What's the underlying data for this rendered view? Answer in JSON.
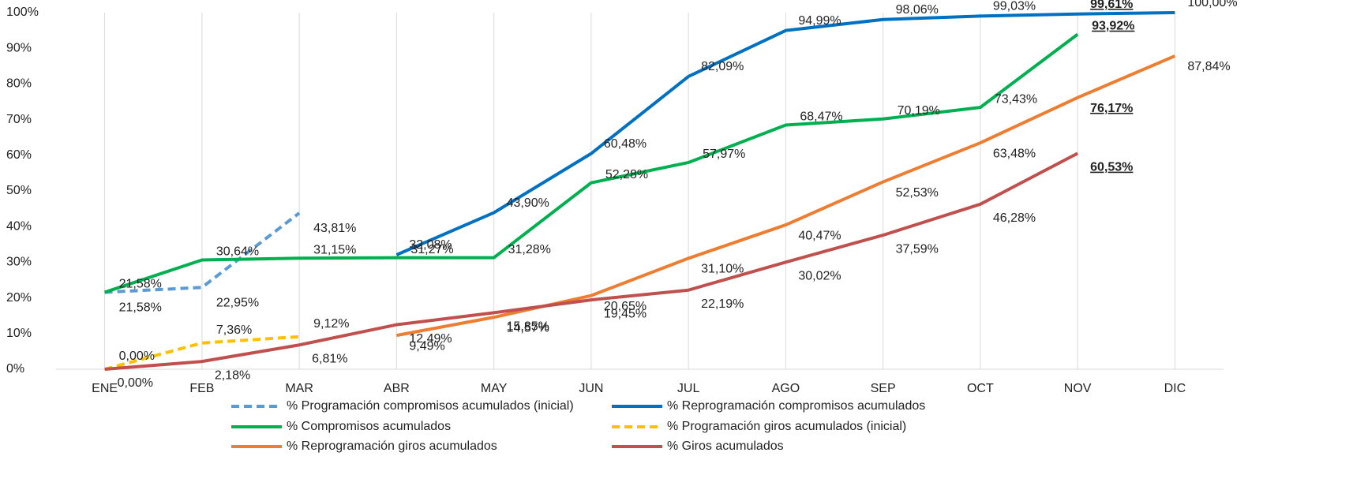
{
  "chart_data": {
    "type": "line",
    "categories": [
      "ENE",
      "FEB",
      "MAR",
      "ABR",
      "MAY",
      "JUN",
      "JUL",
      "AGO",
      "SEP",
      "OCT",
      "NOV",
      "DIC"
    ],
    "ylim": [
      0,
      100
    ],
    "yticks": [
      {
        "value": 0,
        "label": "0%"
      },
      {
        "value": 10,
        "label": "10%"
      },
      {
        "value": 20,
        "label": "20%"
      },
      {
        "value": 30,
        "label": "30%"
      },
      {
        "value": 40,
        "label": "40%"
      },
      {
        "value": 50,
        "label": "50%"
      },
      {
        "value": 60,
        "label": "60%"
      },
      {
        "value": 70,
        "label": "70%"
      },
      {
        "value": 80,
        "label": "80%"
      },
      {
        "value": 90,
        "label": "90%"
      },
      {
        "value": 100,
        "label": "100%"
      }
    ],
    "grid": true,
    "legend": "bottom",
    "series": [
      {
        "name": "% Programación compromisos acumulados (inicial)",
        "color": "#5b9bd5",
        "dashed": true,
        "values": [
          21.58,
          22.95,
          43.81,
          null,
          null,
          null,
          null,
          null,
          null,
          null,
          null,
          null
        ],
        "value_labels": [
          "21,58%",
          "22,95%",
          "43,81%",
          null,
          null,
          null,
          null,
          null,
          null,
          null,
          null,
          null
        ]
      },
      {
        "name": "% Reprogramación compromisos acumulados",
        "color": "#0070c0",
        "dashed": false,
        "values": [
          null,
          null,
          null,
          32.08,
          43.9,
          60.48,
          82.09,
          94.99,
          98.06,
          99.03,
          99.61,
          100.0
        ],
        "value_labels": [
          null,
          null,
          null,
          "32,08%",
          "43,90%",
          "60,48%",
          "82,09%",
          "94,99%",
          "98,06%",
          "99,03%",
          "99,61%",
          "100,00%"
        ]
      },
      {
        "name": "% Compromisos acumulados",
        "color": "#00b050",
        "dashed": false,
        "values": [
          21.58,
          30.64,
          31.15,
          31.27,
          31.28,
          52.28,
          57.97,
          68.47,
          70.19,
          73.43,
          93.92,
          null
        ],
        "value_labels": [
          "21,58%",
          "30,64%",
          "31,15%",
          "31,27%",
          "31,28%",
          "52,28%",
          "57,97%",
          "68,47%",
          "70,19%",
          "73,43%",
          "93,92%",
          null
        ]
      },
      {
        "name": "% Programación giros acumulados (inicial)",
        "color": "#ffc000",
        "dashed": true,
        "values": [
          0.0,
          7.36,
          9.12,
          null,
          null,
          null,
          null,
          null,
          null,
          null,
          null,
          null
        ],
        "value_labels": [
          "0,00%",
          "7,36%",
          "9,12%",
          null,
          null,
          null,
          null,
          null,
          null,
          null,
          null,
          null
        ]
      },
      {
        "name": "% Reprogramación giros acumulados",
        "color": "#ed7d31",
        "dashed": false,
        "values": [
          null,
          null,
          null,
          9.49,
          14.57,
          20.65,
          31.1,
          40.47,
          52.53,
          63.48,
          76.17,
          87.84
        ],
        "value_labels": [
          null,
          null,
          null,
          "9,49%",
          "14,57%",
          "20,65%",
          "31,10%",
          "40,47%",
          "52,53%",
          "63,48%",
          "76,17%",
          "87,84%"
        ]
      },
      {
        "name": "% Giros acumulados",
        "color": "#c0504d",
        "dashed": false,
        "values": [
          0.0,
          2.18,
          6.81,
          12.49,
          15.85,
          19.45,
          22.19,
          30.02,
          37.59,
          46.28,
          60.53,
          null
        ],
        "value_labels": [
          "0,00%",
          "2,18%",
          "6,81%",
          "12,49%",
          "15,85%",
          "19,45%",
          "22,19%",
          "30,02%",
          "37,59%",
          "46,28%",
          "60,53%",
          null
        ]
      }
    ]
  }
}
